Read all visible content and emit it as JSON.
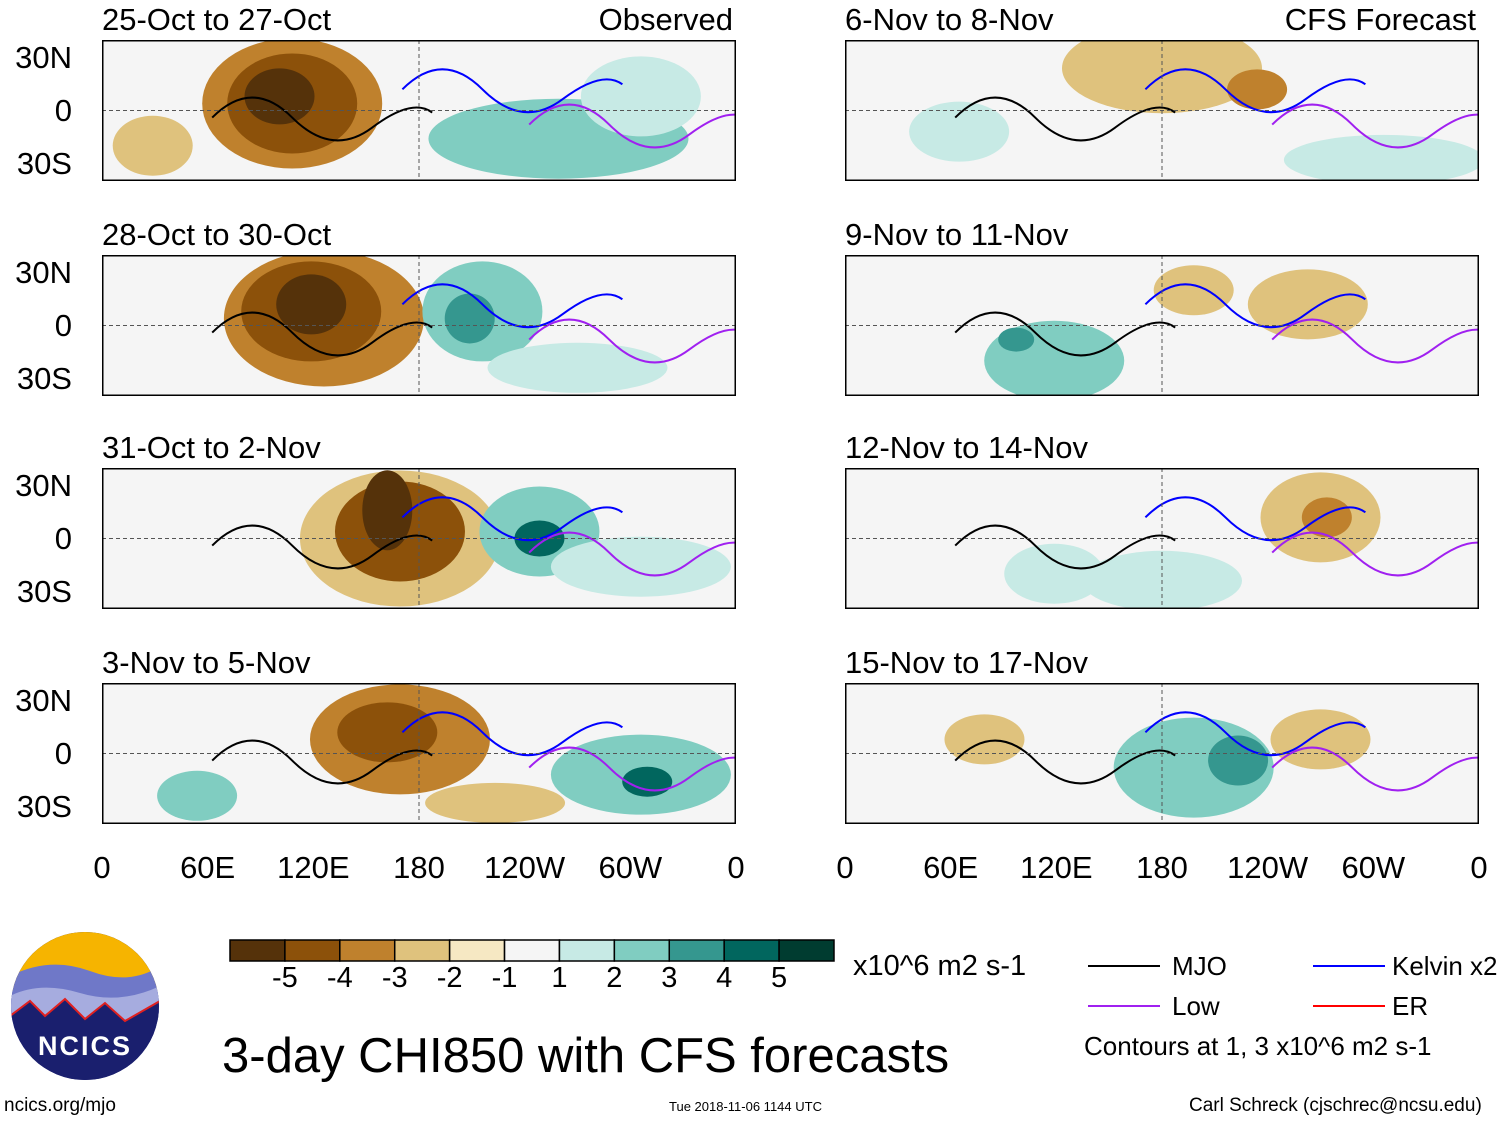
{
  "chart_data": {
    "type": "heatmap",
    "title": "3-day CHI850 with CFS forecasts",
    "units": "x10^6 m2 s-1",
    "columns": [
      {
        "label": "Observed",
        "panels": [
          "25-Oct to 27-Oct",
          "28-Oct to 30-Oct",
          "31-Oct to 2-Nov",
          "3-Nov to 5-Nov"
        ]
      },
      {
        "label": "CFS Forecast",
        "panels": [
          "6-Nov to 8-Nov",
          "9-Nov to 11-Nov",
          "12-Nov to 14-Nov",
          "15-Nov to 17-Nov"
        ]
      }
    ],
    "lat_ticks": [
      "30N",
      "0",
      "30S"
    ],
    "lon_ticks": [
      "0",
      "60E",
      "120E",
      "180",
      "120W",
      "60W",
      "0"
    ],
    "colorbar": {
      "labels": [
        "-5",
        "-4",
        "-3",
        "-2",
        "-1",
        "1",
        "2",
        "3",
        "4",
        "5"
      ],
      "colors": [
        "#55320a",
        "#8c510a",
        "#bf812d",
        "#dfc27d",
        "#f6e8c3",
        "#f5f5f5",
        "#c7eae5",
        "#80cdc1",
        "#35978f",
        "#01665e",
        "#003c30"
      ]
    },
    "legend": [
      {
        "label": "MJO",
        "color": "#000000"
      },
      {
        "label": "Low",
        "color": "#a020f0"
      },
      {
        "label": "Kelvin x2",
        "color": "#0000ff"
      },
      {
        "label": "ER",
        "color": "#ff0000"
      }
    ],
    "contour_note": "Contours at 1, 3 x10^6 m2 s-1"
  },
  "footer": {
    "logo_text": "NCICS",
    "site": "ncics.org/mjo",
    "timestamp": "Tue 2018-11-06 1144 UTC",
    "author": "Carl Schreck (cjschrec@ncsu.edu)"
  }
}
